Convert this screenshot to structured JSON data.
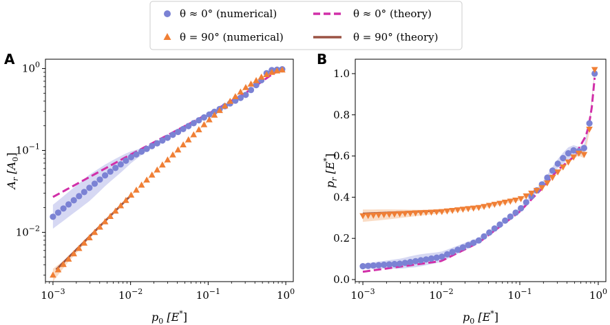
{
  "colors": {
    "num0": "#7b82d4",
    "num90": "#f07f35",
    "th0": "#d12fa8",
    "th90": "#9b5344",
    "band0": "#8a90de",
    "band90": "#f29a5a"
  },
  "legend": {
    "entries": [
      {
        "key": "num0",
        "label": "θ ≈ 0° (numerical)",
        "marker": "circle"
      },
      {
        "key": "th0",
        "label": "θ ≈ 0° (theory)",
        "marker": "dashed-line"
      },
      {
        "key": "num90",
        "label": "θ = 90° (numerical)",
        "marker": "triangle"
      },
      {
        "key": "th90",
        "label": "θ = 90° (theory)",
        "marker": "solid-line"
      }
    ]
  },
  "chart_data": [
    {
      "panel": "A",
      "type": "scatter",
      "xscale": "log",
      "yscale": "log",
      "xlabel": "p0 [E*]",
      "ylabel": "Ar [A0]",
      "xlim": [
        0.0008,
        1.25
      ],
      "ylim": [
        0.0025,
        1.3
      ],
      "xticks": [
        {
          "value": 0.001,
          "base": "10",
          "exp": "−3"
        },
        {
          "value": 0.01,
          "base": "10",
          "exp": "−2"
        },
        {
          "value": 0.1,
          "base": "10",
          "exp": "−1"
        },
        {
          "value": 1,
          "base": "10",
          "exp": "0"
        }
      ],
      "yticks": [
        {
          "value": 0.01,
          "base": "10",
          "exp": "−2"
        },
        {
          "value": 0.1,
          "base": "10",
          "exp": "−1"
        },
        {
          "value": 1,
          "base": "10",
          "exp": "0"
        }
      ],
      "series": [
        {
          "name": "theta0_numerical",
          "marker": "circle",
          "x_range": [
            0.001,
            0.9
          ],
          "n": 45,
          "anchors": [
            [
              0.001,
              0.0155
            ],
            [
              0.002,
              0.026
            ],
            [
              0.005,
              0.052
            ],
            [
              0.01,
              0.082
            ],
            [
              0.03,
              0.143
            ],
            [
              0.1,
              0.27
            ],
            [
              0.3,
              0.47
            ],
            [
              0.5,
              0.74
            ],
            [
              0.6,
              0.95
            ],
            [
              0.9,
              0.98
            ]
          ],
          "band_halfwidth": [
            [
              0.001,
              1.4
            ],
            [
              0.003,
              1.45
            ],
            [
              0.008,
              1.25
            ],
            [
              0.015,
              1.08
            ],
            [
              0.03,
              1.02
            ],
            [
              1,
              1.02
            ]
          ]
        },
        {
          "name": "theta90_numerical",
          "marker": "triangle",
          "x_range": [
            0.001,
            0.9
          ],
          "n": 45,
          "anchors": [
            [
              0.001,
              0.003
            ],
            [
              0.01,
              0.028
            ],
            [
              0.1,
              0.23
            ],
            [
              0.3,
              0.58
            ],
            [
              0.5,
              0.8
            ],
            [
              0.7,
              0.92
            ],
            [
              0.9,
              0.96
            ]
          ],
          "band_halfwidth": [
            [
              0.001,
              1.2
            ],
            [
              0.0015,
              1.08
            ],
            [
              0.003,
              1.02
            ],
            [
              1,
              1.02
            ]
          ]
        },
        {
          "name": "theta0_theory",
          "style": "dashed",
          "anchors": [
            [
              0.001,
              0.027
            ],
            [
              0.01,
              0.089
            ],
            [
              0.1,
              0.28
            ],
            [
              0.3,
              0.5
            ],
            [
              0.5,
              0.7
            ],
            [
              0.7,
              0.88
            ],
            [
              0.9,
              0.95
            ]
          ]
        },
        {
          "name": "theta90_theory",
          "style": "solid",
          "anchors": [
            [
              0.0011,
              0.0035
            ],
            [
              0.01,
              0.028
            ]
          ]
        }
      ]
    },
    {
      "panel": "B",
      "type": "scatter",
      "xscale": "log",
      "yscale": "linear",
      "xlabel": "p0 [E*]",
      "ylabel": "pr [E*]",
      "xlim": [
        0.0008,
        1.25
      ],
      "ylim": [
        -0.01,
        1.07
      ],
      "xticks": [
        {
          "value": 0.001,
          "base": "10",
          "exp": "−3"
        },
        {
          "value": 0.01,
          "base": "10",
          "exp": "−2"
        },
        {
          "value": 0.1,
          "base": "10",
          "exp": "−1"
        },
        {
          "value": 1,
          "base": "10",
          "exp": "0"
        }
      ],
      "yticks": [
        {
          "value": 0.0,
          "label": "0.0"
        },
        {
          "value": 0.2,
          "label": "0.2"
        },
        {
          "value": 0.4,
          "label": "0.4"
        },
        {
          "value": 0.6,
          "label": "0.6"
        },
        {
          "value": 0.8,
          "label": "0.8"
        },
        {
          "value": 1.0,
          "label": "1.0"
        }
      ],
      "series": [
        {
          "name": "theta0_numerical",
          "marker": "circle",
          "x_range": [
            0.001,
            0.9
          ],
          "n": 45,
          "anchors": [
            [
              0.001,
              0.065
            ],
            [
              0.003,
              0.077
            ],
            [
              0.01,
              0.11
            ],
            [
              0.03,
              0.19
            ],
            [
              0.1,
              0.34
            ],
            [
              0.2,
              0.47
            ],
            [
              0.3,
              0.56
            ],
            [
              0.4,
              0.61
            ],
            [
              0.5,
              0.63
            ],
            [
              0.6,
              0.62
            ],
            [
              0.7,
              0.65
            ],
            [
              0.8,
              0.8
            ],
            [
              0.9,
              1.0
            ]
          ],
          "band_halfwidth": [
            [
              0.001,
              0.012
            ],
            [
              0.005,
              0.03
            ],
            [
              0.01,
              0.025
            ],
            [
              0.05,
              0.008
            ],
            [
              0.2,
              0.01
            ],
            [
              0.4,
              0.03
            ],
            [
              0.6,
              0.02
            ],
            [
              0.9,
              0.01
            ]
          ]
        },
        {
          "name": "theta90_numerical",
          "marker": "triangle-down",
          "x_range": [
            0.001,
            0.9
          ],
          "n": 45,
          "anchors": [
            [
              0.001,
              0.31
            ],
            [
              0.01,
              0.33
            ],
            [
              0.03,
              0.35
            ],
            [
              0.1,
              0.39
            ],
            [
              0.2,
              0.45
            ],
            [
              0.3,
              0.52
            ],
            [
              0.5,
              0.6
            ],
            [
              0.6,
              0.62
            ],
            [
              0.7,
              0.6
            ],
            [
              0.8,
              0.78
            ],
            [
              0.9,
              1.02
            ]
          ],
          "band_halfwidth": [
            [
              0.001,
              0.03
            ],
            [
              0.002,
              0.025
            ],
            [
              0.005,
              0.015
            ],
            [
              0.01,
              0.008
            ],
            [
              0.5,
              0.008
            ],
            [
              0.7,
              0.02
            ],
            [
              0.9,
              0.01
            ]
          ]
        },
        {
          "name": "theta0_theory",
          "style": "dashed",
          "anchors": [
            [
              0.001,
              0.038
            ],
            [
              0.01,
              0.09
            ],
            [
              0.03,
              0.18
            ],
            [
              0.1,
              0.33
            ],
            [
              0.2,
              0.45
            ],
            [
              0.3,
              0.53
            ],
            [
              0.5,
              0.6
            ],
            [
              0.7,
              0.7
            ],
            [
              0.8,
              0.78
            ],
            [
              0.9,
              0.98
            ]
          ]
        },
        {
          "name": "theta90_theory",
          "style": "solid",
          "anchors": [
            [
              0.001,
              0.32
            ],
            [
              0.01,
              0.335
            ]
          ]
        }
      ]
    }
  ],
  "panels": {
    "A": {
      "letter": "A",
      "xlabel_main": "p",
      "xlabel_sub": "0",
      "xlabel_unit_open": "[E",
      "xlabel_unit_sup": "*",
      "xlabel_unit_close": "]",
      "ylabel_main": "A",
      "ylabel_sub": "r",
      "ylabel_unit_open": "[A",
      "ylabel_unit_sub": "0",
      "ylabel_unit_close": "]"
    },
    "B": {
      "letter": "B",
      "xlabel_main": "p",
      "xlabel_sub": "0",
      "xlabel_unit_open": "[E",
      "xlabel_unit_sup": "*",
      "xlabel_unit_close": "]",
      "ylabel_main": "p",
      "ylabel_sub": "r",
      "ylabel_unit_open": "[E",
      "ylabel_unit_sup": "*",
      "ylabel_unit_close": "]"
    }
  }
}
